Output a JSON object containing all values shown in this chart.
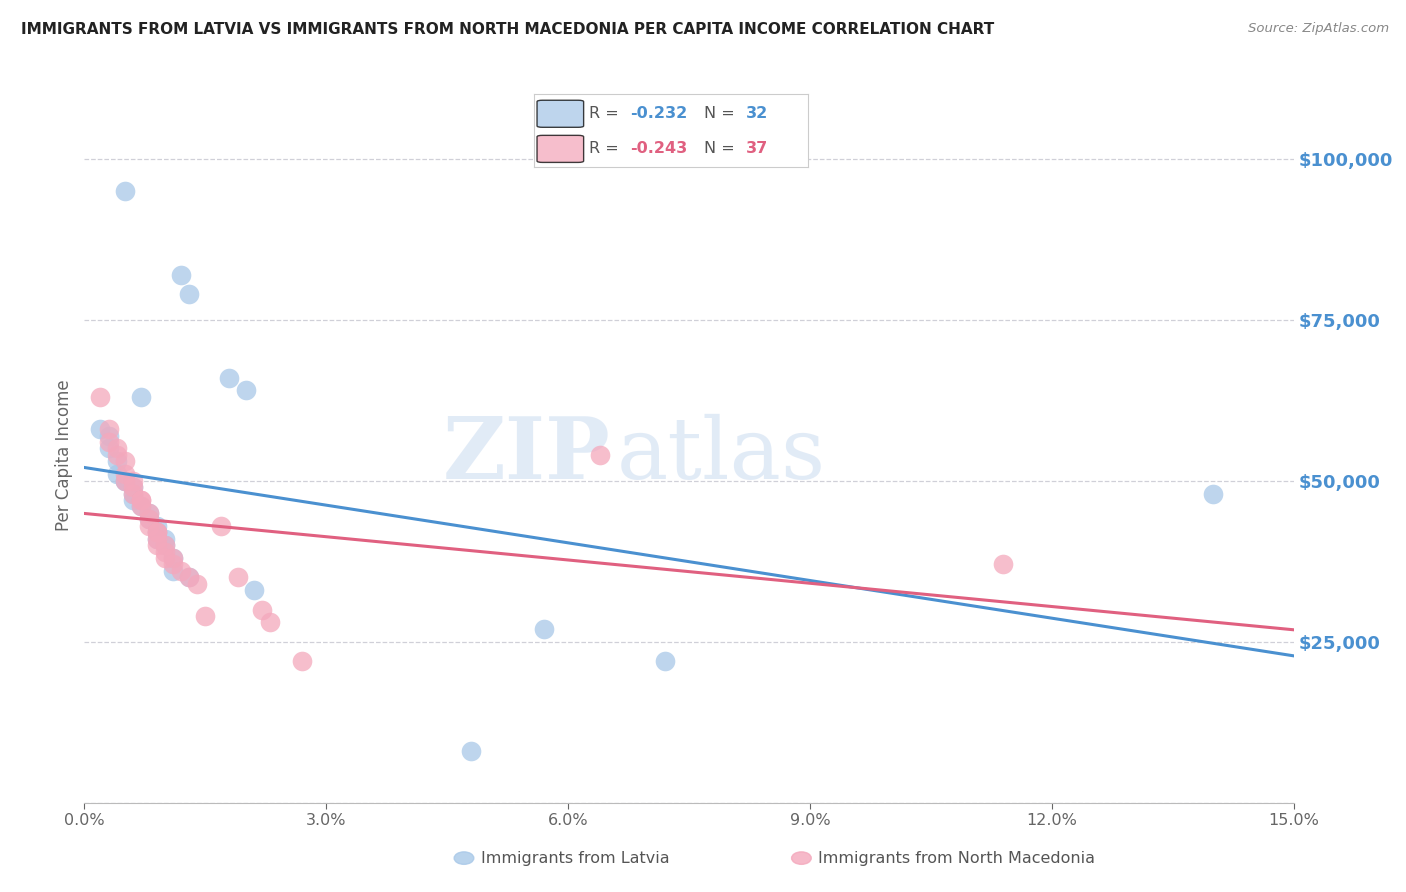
{
  "title": "IMMIGRANTS FROM LATVIA VS IMMIGRANTS FROM NORTH MACEDONIA PER CAPITA INCOME CORRELATION CHART",
  "source": "Source: ZipAtlas.com",
  "ylabel": "Per Capita Income",
  "ytick_labels": [
    "",
    "$25,000",
    "$50,000",
    "$75,000",
    "$100,000"
  ],
  "yticks": [
    0,
    25000,
    50000,
    75000,
    100000
  ],
  "xmin": 0.0,
  "xmax": 0.15,
  "ymin": 0,
  "ymax": 108000,
  "latvia_color": "#a8c8e8",
  "macedonia_color": "#f4a8bc",
  "latvia_line_color": "#4a90d0",
  "macedonia_line_color": "#e06080",
  "legend_r_latvia": "-0.232",
  "legend_n_latvia": "32",
  "legend_r_macedonia": "-0.243",
  "legend_n_macedonia": "37",
  "watermark_zip": "ZIP",
  "watermark_atlas": "atlas",
  "background_color": "#ffffff",
  "grid_color": "#d0d0d8",
  "ytick_color": "#4a90d0",
  "latvia_x": [
    0.005,
    0.012,
    0.013,
    0.018,
    0.02,
    0.002,
    0.003,
    0.003,
    0.004,
    0.004,
    0.005,
    0.005,
    0.006,
    0.006,
    0.006,
    0.007,
    0.007,
    0.008,
    0.008,
    0.009,
    0.009,
    0.009,
    0.01,
    0.01,
    0.011,
    0.011,
    0.013,
    0.021,
    0.057,
    0.072,
    0.14,
    0.048
  ],
  "latvia_y": [
    95000,
    82000,
    79000,
    66000,
    64000,
    58000,
    57000,
    55000,
    53000,
    51000,
    50000,
    50000,
    49000,
    48000,
    47000,
    46000,
    63000,
    45000,
    44000,
    43000,
    42000,
    41000,
    40000,
    41000,
    38000,
    36000,
    35000,
    33000,
    27000,
    22000,
    48000,
    8000
  ],
  "macedonia_x": [
    0.002,
    0.003,
    0.003,
    0.004,
    0.004,
    0.005,
    0.005,
    0.005,
    0.006,
    0.006,
    0.006,
    0.007,
    0.007,
    0.007,
    0.008,
    0.008,
    0.008,
    0.009,
    0.009,
    0.009,
    0.009,
    0.01,
    0.01,
    0.01,
    0.011,
    0.011,
    0.012,
    0.013,
    0.014,
    0.015,
    0.017,
    0.019,
    0.022,
    0.023,
    0.027,
    0.114,
    0.064
  ],
  "macedonia_y": [
    63000,
    58000,
    56000,
    55000,
    54000,
    53000,
    51000,
    50000,
    50000,
    49000,
    48000,
    47000,
    47000,
    46000,
    45000,
    44000,
    43000,
    42000,
    42000,
    41000,
    40000,
    40000,
    39000,
    38000,
    38000,
    37000,
    36000,
    35000,
    34000,
    29000,
    43000,
    35000,
    30000,
    28000,
    22000,
    37000,
    54000
  ]
}
